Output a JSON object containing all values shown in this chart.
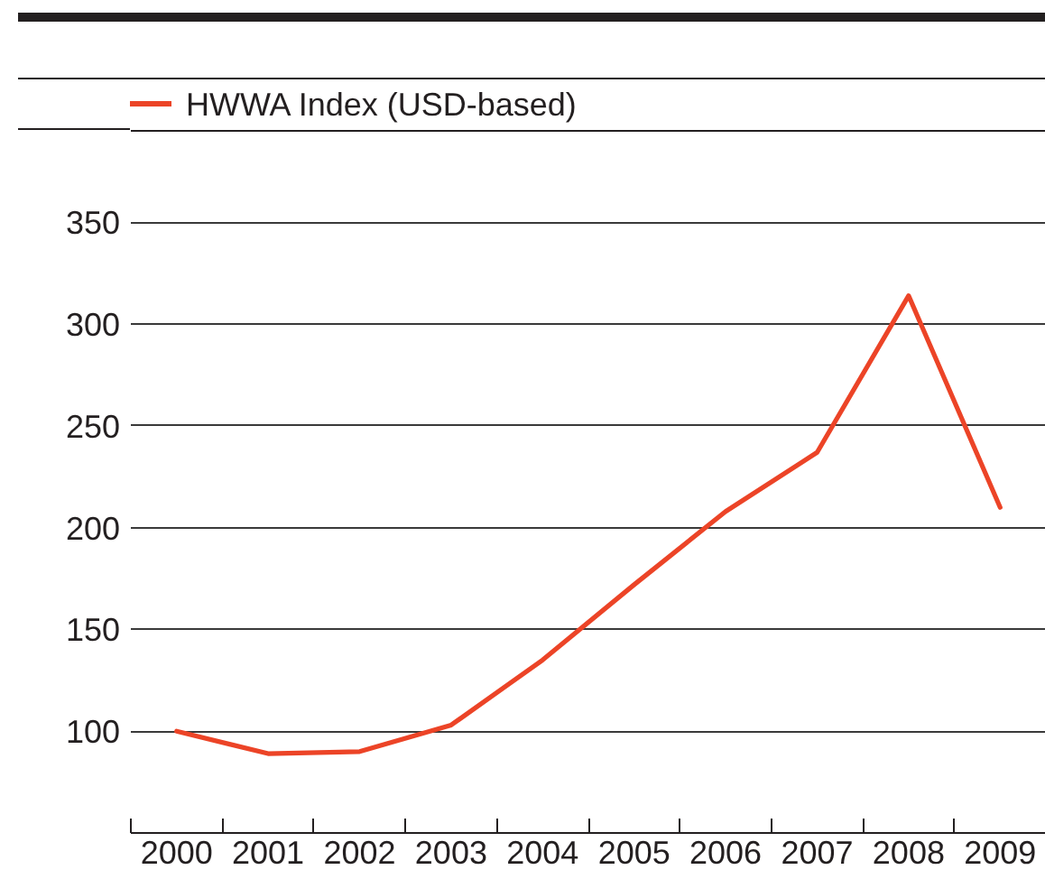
{
  "chart_data": {
    "type": "line",
    "categories": [
      "2000",
      "2001",
      "2002",
      "2003",
      "2004",
      "2005",
      "2006",
      "2007",
      "2008",
      "2009"
    ],
    "series": [
      {
        "name": "HWWA Index (USD-based)",
        "color": "#ec4427",
        "values": [
          100,
          89,
          90,
          103,
          135,
          172,
          208,
          237,
          314,
          210
        ]
      }
    ],
    "ylim": [
      50,
      395
    ],
    "yticks": [
      100,
      150,
      200,
      250,
      300,
      350
    ],
    "grid": "y",
    "legend": "top left"
  }
}
